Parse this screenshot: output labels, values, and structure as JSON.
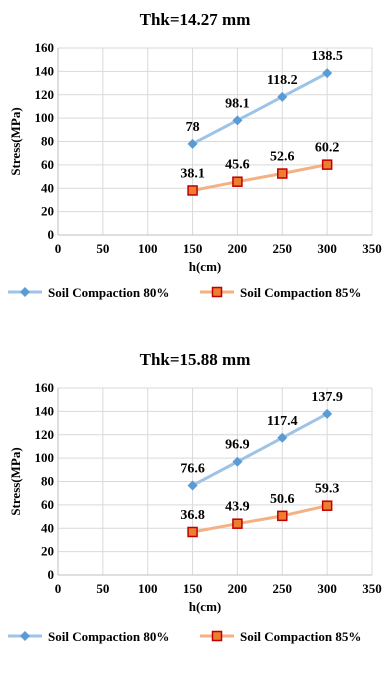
{
  "chart_data": [
    {
      "type": "line",
      "title": "Thk=14.27 mm",
      "xlabel": "h(cm)",
      "ylabel": "Stress(MPa)",
      "xlim": [
        0,
        350
      ],
      "ylim": [
        0,
        160
      ],
      "xticks": [
        "0",
        "50",
        "100",
        "150",
        "200",
        "250",
        "300",
        "350"
      ],
      "yticks": [
        "0",
        "20",
        "40",
        "60",
        "80",
        "100",
        "120",
        "140",
        "160"
      ],
      "grid": true,
      "legend": "bottom",
      "series": [
        {
          "name": "Soil Compaction 80%",
          "color": "#9dc3e6",
          "marker_color": "#5b9bd5",
          "marker": "diamond",
          "x": [
            150,
            200,
            250,
            300
          ],
          "values": [
            78,
            98.1,
            118.2,
            138.5
          ],
          "labels": [
            "78",
            "98.1",
            "118.2",
            "138.5"
          ]
        },
        {
          "name": "Soil Compaction 85%",
          "color": "#f4b183",
          "marker_color": "#c00000",
          "marker_fill": "#ed7d31",
          "marker": "square",
          "x": [
            150,
            200,
            250,
            300
          ],
          "values": [
            38.1,
            45.6,
            52.6,
            60.2
          ],
          "labels": [
            "38.1",
            "45.6",
            "52.6",
            "60.2"
          ]
        }
      ]
    },
    {
      "type": "line",
      "title": "Thk=15.88 mm",
      "xlabel": "h(cm)",
      "ylabel": "Stress(MPa)",
      "xlim": [
        0,
        350
      ],
      "ylim": [
        0,
        160
      ],
      "xticks": [
        "0",
        "50",
        "100",
        "150",
        "200",
        "250",
        "300",
        "350"
      ],
      "yticks": [
        "0",
        "20",
        "40",
        "60",
        "80",
        "100",
        "120",
        "140",
        "160"
      ],
      "grid": true,
      "legend": "bottom",
      "series": [
        {
          "name": "Soil Compaction 80%",
          "color": "#9dc3e6",
          "marker_color": "#5b9bd5",
          "marker": "diamond",
          "x": [
            150,
            200,
            250,
            300
          ],
          "values": [
            76.6,
            96.9,
            117.4,
            137.9
          ],
          "labels": [
            "76.6",
            "96.9",
            "117.4",
            "137.9"
          ]
        },
        {
          "name": "Soil Compaction 85%",
          "color": "#f4b183",
          "marker_color": "#c00000",
          "marker_fill": "#ed7d31",
          "marker": "square",
          "x": [
            150,
            200,
            250,
            300
          ],
          "values": [
            36.8,
            43.9,
            50.6,
            59.3
          ],
          "labels": [
            "36.8",
            "43.9",
            "50.6",
            "59.3"
          ]
        }
      ]
    }
  ]
}
